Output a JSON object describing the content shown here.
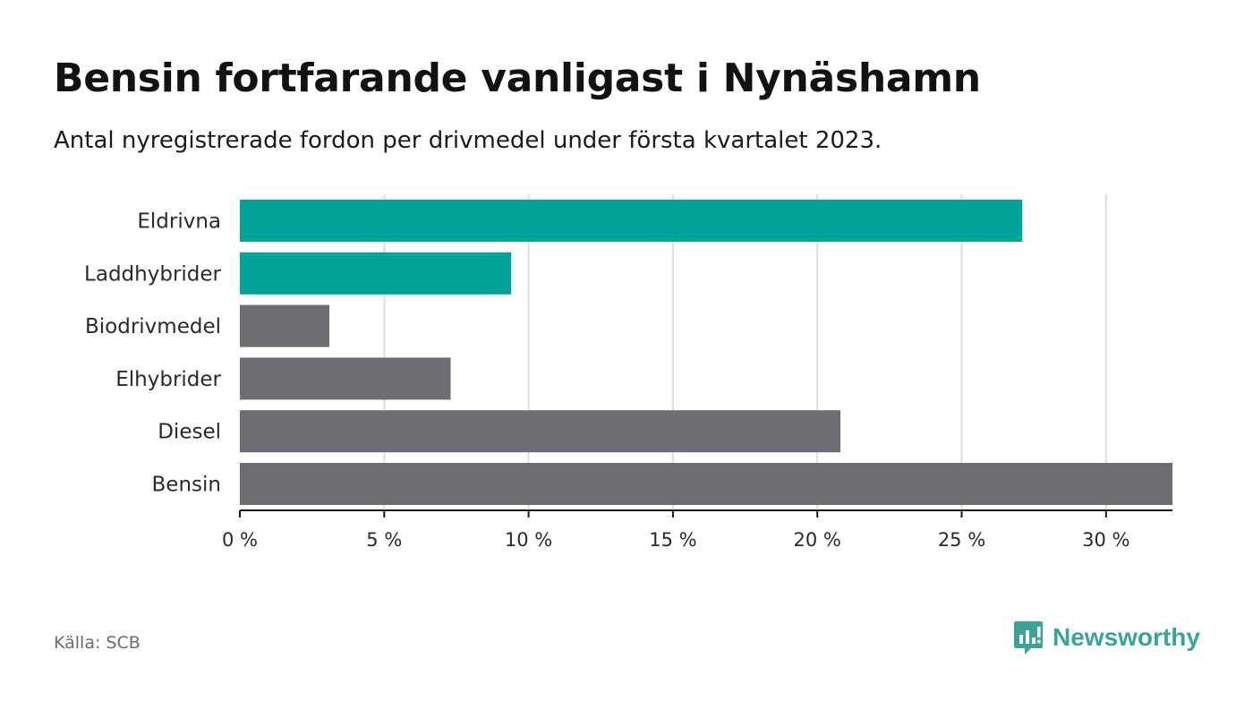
{
  "chart_data": {
    "type": "bar",
    "orientation": "horizontal",
    "title": "Bensin fortfarande vanligast i Nynäshamn",
    "subtitle": "Antal nyregistrerade fordon per drivmedel under första kvartalet 2023.",
    "categories": [
      "Eldrivna",
      "Laddhybrider",
      "Biodrivmedel",
      "Elhybrider",
      "Diesel",
      "Bensin"
    ],
    "values": [
      27.1,
      9.4,
      3.1,
      7.3,
      20.8,
      32.3
    ],
    "bar_colors": [
      "#00a398",
      "#00a398",
      "#6e6d74",
      "#6e6d74",
      "#6e6d74",
      "#6e6d74"
    ],
    "xlim": [
      0,
      32.3
    ],
    "xticks": [
      0,
      5,
      10,
      15,
      20,
      25,
      30
    ],
    "xtick_labels": [
      "0 %",
      "5 %",
      "10 %",
      "15 %",
      "20 %",
      "25 %",
      "30 %"
    ],
    "xlabel": "",
    "ylabel": "",
    "grid": true,
    "units": "%"
  },
  "footer": {
    "source": "Källa: SCB",
    "brand": "Newsworthy",
    "brand_color": "#3aa39a"
  }
}
